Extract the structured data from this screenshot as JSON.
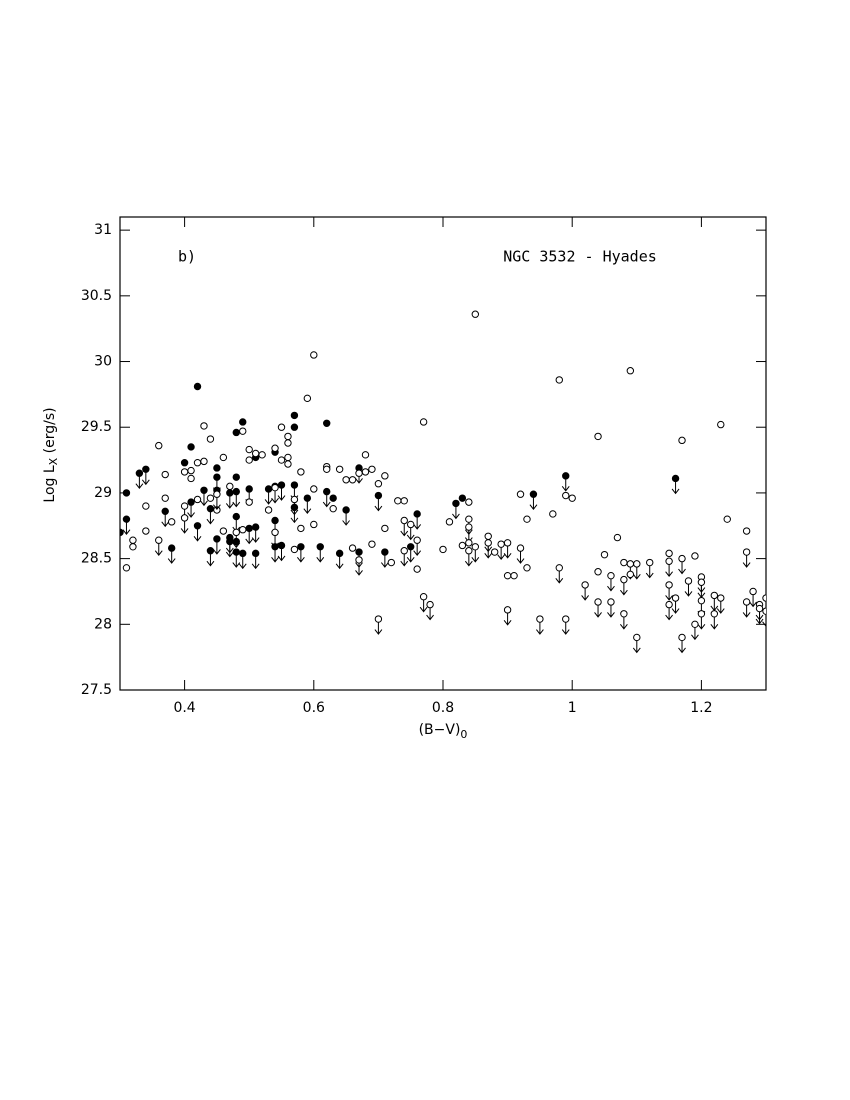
{
  "chart_data": {
    "type": "scatter",
    "annotations": [
      "b)",
      "NGC 3532 - Hyades"
    ],
    "y_label": [
      "Log L",
      "X",
      " (erg/s)"
    ],
    "x_label": [
      "(B−V)",
      "0"
    ],
    "xlim": [
      0.3,
      1.3
    ],
    "xticks": [
      0.4,
      0.6,
      0.8,
      1,
      1.2
    ],
    "ylim": [
      27.5,
      31.1
    ],
    "yticks": [
      27.5,
      28,
      28.5,
      29,
      29.5,
      30,
      30.5,
      31
    ],
    "series": [
      {
        "filled": true,
        "color": "#000000",
        "x": [
          0.31,
          0.31,
          0.3,
          0.33,
          0.34,
          0.37,
          0.38,
          0.4,
          0.41,
          0.41,
          0.42,
          0.42,
          0.43,
          0.44,
          0.44,
          0.45,
          0.45,
          0.45,
          0.45,
          0.47,
          0.47,
          0.47,
          0.48,
          0.48,
          0.48,
          0.48,
          0.48,
          0.48,
          0.49,
          0.49,
          0.5,
          0.5,
          0.51,
          0.51,
          0.51,
          0.53,
          0.54,
          0.54,
          0.54,
          0.54,
          0.55,
          0.55,
          0.57,
          0.57,
          0.57,
          0.57,
          0.58,
          0.59,
          0.61,
          0.62,
          0.62,
          0.63,
          0.64,
          0.65,
          0.67,
          0.67,
          0.7,
          0.71,
          0.75,
          0.76,
          0.82,
          0.83,
          0.94,
          0.99,
          1.16
        ],
        "values": [
          29.0,
          28.8,
          28.7,
          29.15,
          29.18,
          28.86,
          28.58,
          29.23,
          29.35,
          28.93,
          29.81,
          28.75,
          29.02,
          28.88,
          28.56,
          29.19,
          29.12,
          29.02,
          28.65,
          29.0,
          28.66,
          28.63,
          29.46,
          29.12,
          29.01,
          28.82,
          28.63,
          28.55,
          29.54,
          28.54,
          29.03,
          28.73,
          29.27,
          28.74,
          28.54,
          29.03,
          29.31,
          28.79,
          28.59,
          29.05,
          29.06,
          28.6,
          29.59,
          29.5,
          29.06,
          28.89,
          28.59,
          28.96,
          28.59,
          29.53,
          29.01,
          28.96,
          28.54,
          28.87,
          29.19,
          28.55,
          28.98,
          28.55,
          28.59,
          28.84,
          28.92,
          28.96,
          28.99,
          29.13,
          29.11
        ],
        "upper_limit": [
          false,
          true,
          false,
          true,
          true,
          true,
          true,
          false,
          false,
          true,
          false,
          true,
          true,
          true,
          true,
          false,
          true,
          false,
          true,
          true,
          true,
          true,
          false,
          false,
          true,
          true,
          false,
          true,
          false,
          true,
          true,
          true,
          false,
          true,
          true,
          true,
          false,
          true,
          true,
          false,
          true,
          true,
          false,
          false,
          true,
          true,
          true,
          true,
          true,
          false,
          true,
          false,
          true,
          true,
          true,
          true,
          true,
          true,
          true,
          true,
          true,
          false,
          true,
          true,
          true
        ]
      },
      {
        "filled": false,
        "color": "#000000",
        "x": [
          0.31,
          0.32,
          0.32,
          0.34,
          0.34,
          0.36,
          0.36,
          0.37,
          0.37,
          0.38,
          0.4,
          0.4,
          0.4,
          0.41,
          0.41,
          0.42,
          0.42,
          0.43,
          0.43,
          0.44,
          0.44,
          0.45,
          0.45,
          0.46,
          0.46,
          0.47,
          0.48,
          0.49,
          0.49,
          0.5,
          0.5,
          0.5,
          0.51,
          0.52,
          0.53,
          0.54,
          0.54,
          0.54,
          0.55,
          0.55,
          0.56,
          0.56,
          0.56,
          0.56,
          0.57,
          0.57,
          0.58,
          0.58,
          0.59,
          0.6,
          0.6,
          0.6,
          0.62,
          0.62,
          0.63,
          0.64,
          0.65,
          0.66,
          0.66,
          0.67,
          0.67,
          0.68,
          0.68,
          0.69,
          0.69,
          0.7,
          0.7,
          0.71,
          0.71,
          0.72,
          0.73,
          0.74,
          0.74,
          0.74,
          0.75,
          0.76,
          0.76,
          0.77,
          0.77,
          0.78,
          0.8,
          0.81,
          0.83,
          0.84,
          0.84,
          0.84,
          0.84,
          0.84,
          0.85,
          0.85,
          0.87,
          0.87,
          0.88,
          0.89,
          0.9,
          0.9,
          0.9,
          0.91,
          0.92,
          0.92,
          0.93,
          0.93,
          0.95,
          0.97,
          0.98,
          0.98,
          0.99,
          0.99,
          1.0,
          1.02,
          1.04,
          1.04,
          1.04,
          1.05,
          1.06,
          1.06,
          1.07,
          1.08,
          1.08,
          1.08,
          1.09,
          1.09,
          1.09,
          1.1,
          1.1,
          1.12,
          1.15,
          1.15,
          1.15,
          1.15,
          1.16,
          1.17,
          1.17,
          1.17,
          1.18,
          1.19,
          1.19,
          1.2,
          1.2,
          1.2,
          1.2,
          1.22,
          1.22,
          1.23,
          1.23,
          1.24,
          1.27,
          1.27,
          1.27,
          1.28,
          1.29,
          1.29,
          1.3,
          1.3
        ],
        "values": [
          28.43,
          28.64,
          28.59,
          28.9,
          28.71,
          29.36,
          28.64,
          29.14,
          28.96,
          28.78,
          28.9,
          28.81,
          29.16,
          29.17,
          29.11,
          29.23,
          28.95,
          29.51,
          29.24,
          29.41,
          28.96,
          28.87,
          28.99,
          28.71,
          29.27,
          29.05,
          28.7,
          29.47,
          28.72,
          29.33,
          29.25,
          28.93,
          29.3,
          29.29,
          28.87,
          29.34,
          29.04,
          28.7,
          29.5,
          29.25,
          29.43,
          29.38,
          29.27,
          29.22,
          28.95,
          28.57,
          29.16,
          28.73,
          29.72,
          30.05,
          29.03,
          28.76,
          29.2,
          29.18,
          28.88,
          29.18,
          29.1,
          29.1,
          28.58,
          29.15,
          28.49,
          29.29,
          29.16,
          29.18,
          28.61,
          29.07,
          28.04,
          29.13,
          28.73,
          28.47,
          28.94,
          28.94,
          28.79,
          28.56,
          28.76,
          28.64,
          28.42,
          29.54,
          28.21,
          28.15,
          28.57,
          28.78,
          28.6,
          28.93,
          28.8,
          28.74,
          28.62,
          28.56,
          30.36,
          28.59,
          28.67,
          28.62,
          28.55,
          28.61,
          28.62,
          28.37,
          28.11,
          28.37,
          28.99,
          28.58,
          28.8,
          28.43,
          28.04,
          28.84,
          29.86,
          28.43,
          28.98,
          28.04,
          28.96,
          28.3,
          29.43,
          28.4,
          28.17,
          28.53,
          28.37,
          28.17,
          28.66,
          28.47,
          28.34,
          28.08,
          29.93,
          28.46,
          28.38,
          28.46,
          27.9,
          28.47,
          28.54,
          28.48,
          28.3,
          28.15,
          28.2,
          29.4,
          28.5,
          27.9,
          28.33,
          28.52,
          28.0,
          28.36,
          28.32,
          28.18,
          28.08,
          28.22,
          28.08,
          29.52,
          28.2,
          28.8,
          28.71,
          28.55,
          28.17,
          28.25,
          28.15,
          28.12,
          28.2,
          28.1
        ],
        "upper_limit": [
          false,
          false,
          false,
          false,
          false,
          false,
          true,
          false,
          false,
          false,
          true,
          true,
          false,
          false,
          false,
          false,
          false,
          false,
          false,
          false,
          false,
          false,
          true,
          false,
          false,
          false,
          true,
          false,
          false,
          false,
          false,
          false,
          false,
          false,
          false,
          false,
          true,
          true,
          false,
          false,
          false,
          false,
          false,
          false,
          true,
          false,
          false,
          false,
          false,
          false,
          false,
          false,
          false,
          false,
          false,
          false,
          false,
          false,
          false,
          false,
          true,
          false,
          false,
          false,
          false,
          false,
          true,
          false,
          false,
          false,
          false,
          false,
          true,
          true,
          true,
          true,
          false,
          false,
          true,
          true,
          false,
          false,
          false,
          false,
          true,
          true,
          false,
          true,
          false,
          true,
          true,
          true,
          false,
          true,
          true,
          false,
          true,
          false,
          false,
          true,
          false,
          false,
          true,
          false,
          false,
          true,
          false,
          true,
          false,
          true,
          false,
          false,
          true,
          false,
          true,
          true,
          false,
          false,
          true,
          true,
          false,
          true,
          false,
          true,
          true,
          true,
          false,
          true,
          true,
          true,
          true,
          false,
          true,
          true,
          true,
          false,
          true,
          true,
          true,
          true,
          true,
          true,
          true,
          false,
          true,
          false,
          false,
          true,
          true,
          true,
          true,
          true,
          true,
          true
        ]
      }
    ]
  }
}
